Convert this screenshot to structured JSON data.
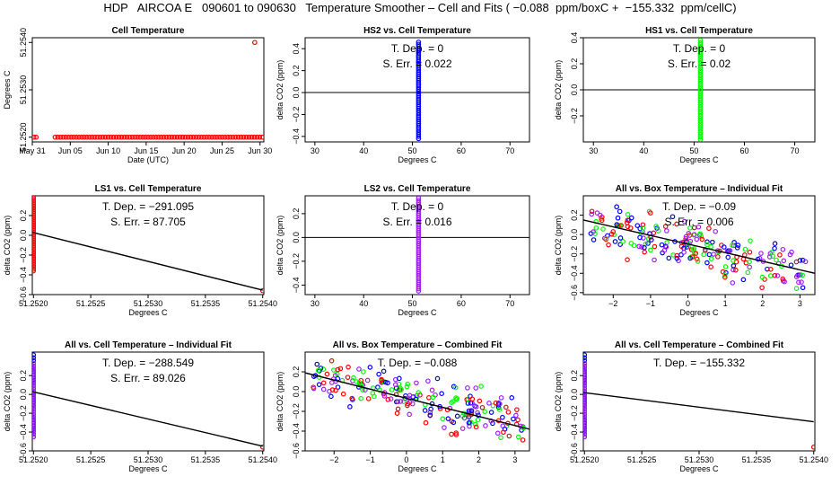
{
  "title": "HDP   AIRCOA E   090601 to 090630   Temperature Smoother – Cell and Fits ( −0.088  ppm/boxC +  −155.332  ppm/cellC)",
  "colors": {
    "red": "#ff0000",
    "blue": "#0000ff",
    "green": "#00ff00",
    "purple": "#a020f0",
    "line": "#000000"
  },
  "chart_data": [
    {
      "type": "scatter",
      "title": "Cell Temperature",
      "xlabel": "Date (UTC)",
      "ylabel": "Degrees C",
      "xlim": [
        0,
        30.5
      ],
      "ylim": [
        51.2519,
        51.2541
      ],
      "xticks": [
        0,
        5,
        10,
        15,
        20,
        25,
        30
      ],
      "xticklabels": [
        "May 31",
        "Jun 05",
        "Jun 10",
        "Jun 15",
        "Jun 20",
        "Jun 25",
        "Jun 30"
      ],
      "yticks": [
        51.252,
        51.253,
        51.254
      ],
      "yticklabels": [
        "51.2520",
        "51.2530",
        "51.2540"
      ],
      "series": [
        {
          "color": "red",
          "points": [
            [
              0.2,
              51.252
            ],
            [
              0.5,
              51.252
            ],
            [
              29.3,
              51.254
            ]
          ],
          "uniform": {
            "from": 3.0,
            "to": 30.4,
            "step": 0.35,
            "y": 51.252
          }
        }
      ]
    },
    {
      "type": "scatter",
      "title": "HS2 vs. Cell Temperature",
      "xlabel": "Degrees C",
      "ylabel": "delta CO2 (ppm)",
      "xlim": [
        28,
        74
      ],
      "ylim": [
        -0.45,
        0.5
      ],
      "xticks": [
        30,
        40,
        50,
        60,
        70
      ],
      "yticks": [
        -0.4,
        -0.2,
        0,
        0.2,
        0.4
      ],
      "yticklabels": [
        "−0.4",
        "−0.2",
        "0.0",
        "0.2",
        "0.4"
      ],
      "hline": 0,
      "annotations": [
        "T. Dep. =  0",
        "S. Err. =  0.022"
      ],
      "series": [
        {
          "color": "blue",
          "points": [],
          "vstack": {
            "x": 51.252,
            "ymin": -0.42,
            "ymax": 0.46,
            "n": 46
          }
        }
      ]
    },
    {
      "type": "scatter",
      "title": "HS1 vs. Cell Temperature",
      "xlabel": "Degrees C",
      "ylabel": "delta CO2 (ppm)",
      "xlim": [
        28,
        74
      ],
      "ylim": [
        -0.4,
        0.4
      ],
      "xticks": [
        30,
        40,
        50,
        60,
        70
      ],
      "yticks": [
        -0.2,
        0,
        0.2,
        0.4
      ],
      "yticklabels": [
        "−0.2",
        "0.0",
        "0.2",
        "0.4"
      ],
      "hline": 0,
      "annotations": [
        "T. Dep. =  0",
        "S. Err. =  0.02"
      ],
      "series": [
        {
          "color": "green",
          "points": [],
          "vstack": {
            "x": 51.252,
            "ymin": -0.38,
            "ymax": 0.38,
            "n": 44
          }
        }
      ]
    },
    {
      "type": "scatter",
      "title": "LS1 vs. Cell Temperature",
      "xlabel": "Degrees C",
      "ylabel": "delta CO2 (ppm)",
      "xlim": [
        51.25199,
        51.25401
      ],
      "ylim": [
        -0.6,
        0.4
      ],
      "xticks": [
        51.252,
        51.2525,
        51.253,
        51.2535,
        51.254
      ],
      "xticklabels": [
        "51.2520",
        "51.2525",
        "51.2530",
        "51.2535",
        "51.2540"
      ],
      "yticks": [
        -0.6,
        -0.4,
        -0.2,
        0,
        0.2
      ],
      "yticklabels": [
        "−0.6",
        "−0.4",
        "−0.2",
        "0.0",
        "0.2"
      ],
      "annotations": [
        "T. Dep. =  −291.095",
        "S. Err. =  87.705"
      ],
      "line": [
        [
          51.25199,
          0.03
        ],
        [
          51.254,
          -0.555
        ]
      ],
      "series": [
        {
          "color": "red",
          "points": [
            [
              51.254,
              -0.56
            ]
          ],
          "vstack": {
            "x": 51.252,
            "ymin": -0.36,
            "ymax": 0.38,
            "n": 44
          }
        }
      ]
    },
    {
      "type": "scatter",
      "title": "LS2 vs. Cell Temperature",
      "xlabel": "Degrees C",
      "ylabel": "delta CO2 (ppm)",
      "xlim": [
        28,
        74
      ],
      "ylim": [
        -0.48,
        0.35
      ],
      "xticks": [
        30,
        40,
        50,
        60,
        70
      ],
      "yticks": [
        -0.4,
        -0.2,
        0,
        0.2
      ],
      "yticklabels": [
        "−0.4",
        "−0.2",
        "0.0",
        "0.2"
      ],
      "hline": 0,
      "annotations": [
        "T. Dep. =  0",
        "S. Err. =  0.016"
      ],
      "series": [
        {
          "color": "purple",
          "points": [],
          "vstack": {
            "x": 51.252,
            "ymin": -0.45,
            "ymax": 0.33,
            "n": 44
          }
        }
      ]
    },
    {
      "type": "scatter",
      "title": "All vs. Box Temperature – Individual Fit",
      "xlabel": "Degrees C",
      "ylabel": "delta CO2 (ppm)",
      "xlim": [
        -2.8,
        3.4
      ],
      "ylim": [
        -0.62,
        0.4
      ],
      "xticks": [
        -2,
        -1,
        0,
        1,
        2,
        3
      ],
      "xticklabels": [
        "−2",
        "−1",
        "0",
        "1",
        "2",
        "3"
      ],
      "yticks": [
        -0.6,
        -0.4,
        -0.2,
        0,
        0.2
      ],
      "yticklabels": [
        "−0.6",
        "−0.4",
        "−0.2",
        "0.0",
        "0.2"
      ],
      "annotations": [
        "T. Dep. =  −0.09",
        "S. Err. =  0.006"
      ],
      "line": [
        [
          -2.8,
          0.15
        ],
        [
          3.4,
          -0.4
        ]
      ],
      "cloud": {
        "slope": -0.09,
        "intercept": -0.1,
        "spread": 0.25,
        "n": 220,
        "seed": 7,
        "colors": [
          "red",
          "blue",
          "green",
          "purple"
        ],
        "xmin": -2.6,
        "xmax": 3.2
      },
      "series": []
    },
    {
      "type": "scatter",
      "title": "All vs. Cell Temperature – Individual Fit",
      "xlabel": "Degrees C",
      "ylabel": "delta CO2 (ppm)",
      "xlim": [
        51.25199,
        51.25401
      ],
      "ylim": [
        -0.6,
        0.45
      ],
      "xticks": [
        51.252,
        51.2525,
        51.253,
        51.2535,
        51.254
      ],
      "xticklabels": [
        "51.2520",
        "51.2525",
        "51.2530",
        "51.2535",
        "51.2540"
      ],
      "yticks": [
        -0.6,
        -0.4,
        -0.2,
        0,
        0.2
      ],
      "yticklabels": [
        "−0.6",
        "−0.4",
        "−0.2",
        "0.0",
        "0.2"
      ],
      "annotations": [
        "T. Dep. =  −288.549",
        "S. Err. =  89.026"
      ],
      "line": [
        [
          51.25199,
          0.03
        ],
        [
          51.254,
          -0.55
        ]
      ],
      "series": [
        {
          "color": "blue",
          "points": [],
          "vstack": {
            "x": 51.252,
            "ymin": -0.45,
            "ymax": 0.42,
            "n": 30
          }
        },
        {
          "color": "purple",
          "points": [],
          "vstack": {
            "x": 51.252,
            "ymin": -0.45,
            "ymax": 0.33,
            "n": 30
          }
        },
        {
          "color": "red",
          "points": [
            [
              51.254,
              -0.56
            ]
          ]
        }
      ]
    },
    {
      "type": "scatter",
      "title": "All vs. Box Temperature – Combined Fit",
      "xlabel": "Degrees C",
      "ylabel": "delta CO2 (ppm)",
      "xlim": [
        -2.8,
        3.4
      ],
      "ylim": [
        -0.6,
        0.4
      ],
      "xticks": [
        -2,
        -1,
        0,
        1,
        2,
        3
      ],
      "xticklabels": [
        "−2",
        "−1",
        "0",
        "1",
        "2",
        "3"
      ],
      "yticks": [
        -0.6,
        -0.4,
        -0.2,
        0,
        0.2
      ],
      "yticklabels": [
        "−0.6",
        "−0.4",
        "−0.2",
        "0.0",
        "0.2"
      ],
      "annotations": [
        "T. Dep. =  −0.088"
      ],
      "line": [
        [
          -2.8,
          0.19
        ],
        [
          3.4,
          -0.38
        ]
      ],
      "cloud": {
        "slope": -0.088,
        "intercept": -0.05,
        "spread": 0.26,
        "n": 220,
        "seed": 13,
        "colors": [
          "red",
          "blue",
          "green",
          "purple"
        ],
        "xmin": -2.6,
        "xmax": 3.25
      },
      "series": []
    },
    {
      "type": "scatter",
      "title": "All vs. Cell Temperature – Combined Fit",
      "xlabel": "Degrees C",
      "ylabel": "delta CO2 (ppm)",
      "xlim": [
        51.25199,
        51.25401
      ],
      "ylim": [
        -0.6,
        0.45
      ],
      "xticks": [
        51.252,
        51.2525,
        51.253,
        51.2535,
        51.254
      ],
      "xticklabels": [
        "51.2520",
        "51.2525",
        "51.2530",
        "51.2535",
        "51.2540"
      ],
      "yticks": [
        -0.6,
        -0.4,
        -0.2,
        0,
        0.2
      ],
      "yticklabels": [
        "−0.6",
        "−0.4",
        "−0.2",
        "0.0",
        "0.2"
      ],
      "annotations": [
        "T. Dep. =  −155.332"
      ],
      "line": [
        [
          51.25199,
          0.02
        ],
        [
          51.254,
          -0.29
        ]
      ],
      "series": [
        {
          "color": "blue",
          "points": [],
          "vstack": {
            "x": 51.252,
            "ymin": -0.45,
            "ymax": 0.42,
            "n": 30
          }
        },
        {
          "color": "purple",
          "points": [],
          "vstack": {
            "x": 51.252,
            "ymin": -0.45,
            "ymax": 0.33,
            "n": 30
          }
        },
        {
          "color": "red",
          "points": [
            [
              51.254,
              -0.56
            ]
          ]
        }
      ]
    }
  ]
}
